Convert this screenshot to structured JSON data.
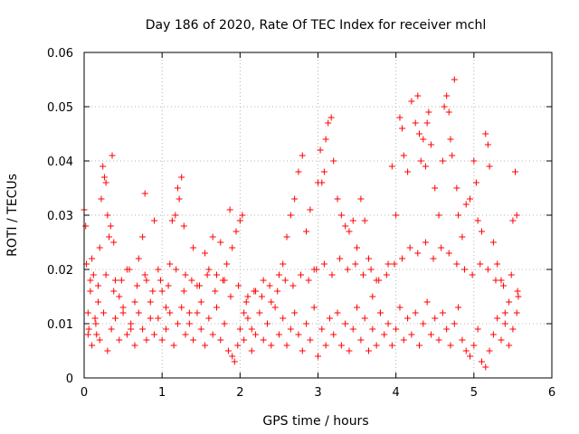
{
  "chart_data": {
    "type": "scatter",
    "title": "Day 186 of 2020, Rate Of TEC Index for receiver mchl",
    "xlabel": "GPS time / hours",
    "ylabel": "ROTI / TECUs",
    "xlim": [
      0,
      6
    ],
    "ylim": [
      0,
      0.06
    ],
    "x_ticks": [
      0,
      1,
      2,
      3,
      4,
      5,
      6
    ],
    "x_tick_labels": [
      "0",
      "1",
      "2",
      "3",
      "4",
      "5",
      "6"
    ],
    "y_ticks": [
      0,
      0.01,
      0.02,
      0.03,
      0.04,
      0.05,
      0.06
    ],
    "y_tick_labels": [
      "0",
      "0.01",
      "0.02",
      "0.03",
      "0.04",
      "0.05",
      "0.06"
    ],
    "grid": true,
    "marker": "+",
    "color": "#ff0000",
    "series": [
      {
        "name": "ROTI",
        "points": [
          [
            0.0,
            0.031
          ],
          [
            0.02,
            0.028
          ],
          [
            0.03,
            0.021
          ],
          [
            0.05,
            0.012
          ],
          [
            0.06,
            0.009
          ],
          [
            0.08,
            0.016
          ],
          [
            0.1,
            0.022
          ],
          [
            0.12,
            0.019
          ],
          [
            0.14,
            0.011
          ],
          [
            0.16,
            0.008
          ],
          [
            0.18,
            0.014
          ],
          [
            0.2,
            0.024
          ],
          [
            0.22,
            0.033
          ],
          [
            0.24,
            0.039
          ],
          [
            0.26,
            0.037
          ],
          [
            0.28,
            0.036
          ],
          [
            0.3,
            0.03
          ],
          [
            0.32,
            0.026
          ],
          [
            0.34,
            0.028
          ],
          [
            0.36,
            0.041
          ],
          [
            0.38,
            0.025
          ],
          [
            0.4,
            0.018
          ],
          [
            0.45,
            0.015
          ],
          [
            0.5,
            0.012
          ],
          [
            0.55,
            0.02
          ],
          [
            0.6,
            0.009
          ],
          [
            0.65,
            0.014
          ],
          [
            0.7,
            0.022
          ],
          [
            0.75,
            0.026
          ],
          [
            0.78,
            0.034
          ],
          [
            0.8,
            0.018
          ],
          [
            0.85,
            0.011
          ],
          [
            0.9,
            0.029
          ],
          [
            0.95,
            0.02
          ],
          [
            1.0,
            0.016
          ],
          [
            1.05,
            0.013
          ],
          [
            1.1,
            0.021
          ],
          [
            1.13,
            0.029
          ],
          [
            1.17,
            0.03
          ],
          [
            1.2,
            0.035
          ],
          [
            1.22,
            0.033
          ],
          [
            1.25,
            0.037
          ],
          [
            1.28,
            0.028
          ],
          [
            1.3,
            0.019
          ],
          [
            1.35,
            0.012
          ],
          [
            1.4,
            0.024
          ],
          [
            1.45,
            0.017
          ],
          [
            1.5,
            0.014
          ],
          [
            1.55,
            0.023
          ],
          [
            1.6,
            0.02
          ],
          [
            1.65,
            0.026
          ],
          [
            1.7,
            0.019
          ],
          [
            1.75,
            0.025
          ],
          [
            1.8,
            0.018
          ],
          [
            1.83,
            0.021
          ],
          [
            1.87,
            0.031
          ],
          [
            1.9,
            0.024
          ],
          [
            1.95,
            0.027
          ],
          [
            2.0,
            0.029
          ],
          [
            2.03,
            0.03
          ],
          [
            2.05,
            0.012
          ],
          [
            2.1,
            0.015
          ],
          [
            2.15,
            0.009
          ],
          [
            2.2,
            0.016
          ],
          [
            2.3,
            0.018
          ],
          [
            2.4,
            0.014
          ],
          [
            2.5,
            0.019
          ],
          [
            2.55,
            0.021
          ],
          [
            2.6,
            0.026
          ],
          [
            2.65,
            0.03
          ],
          [
            2.7,
            0.033
          ],
          [
            2.75,
            0.038
          ],
          [
            2.8,
            0.041
          ],
          [
            2.85,
            0.027
          ],
          [
            2.9,
            0.031
          ],
          [
            2.95,
            0.02
          ],
          [
            3.0,
            0.036
          ],
          [
            3.03,
            0.042
          ],
          [
            3.05,
            0.036
          ],
          [
            3.08,
            0.038
          ],
          [
            3.1,
            0.044
          ],
          [
            3.13,
            0.047
          ],
          [
            3.17,
            0.048
          ],
          [
            3.2,
            0.04
          ],
          [
            3.25,
            0.033
          ],
          [
            3.3,
            0.03
          ],
          [
            3.35,
            0.028
          ],
          [
            3.4,
            0.027
          ],
          [
            3.45,
            0.029
          ],
          [
            3.5,
            0.024
          ],
          [
            3.55,
            0.033
          ],
          [
            3.6,
            0.029
          ],
          [
            3.65,
            0.022
          ],
          [
            3.7,
            0.015
          ],
          [
            3.75,
            0.018
          ],
          [
            3.8,
            0.012
          ],
          [
            3.9,
            0.021
          ],
          [
            3.95,
            0.039
          ],
          [
            4.0,
            0.03
          ],
          [
            4.05,
            0.048
          ],
          [
            4.08,
            0.046
          ],
          [
            4.1,
            0.041
          ],
          [
            4.15,
            0.038
          ],
          [
            4.2,
            0.051
          ],
          [
            4.25,
            0.047
          ],
          [
            4.28,
            0.052
          ],
          [
            4.3,
            0.045
          ],
          [
            4.32,
            0.04
          ],
          [
            4.35,
            0.044
          ],
          [
            4.38,
            0.039
          ],
          [
            4.4,
            0.047
          ],
          [
            4.42,
            0.049
          ],
          [
            4.45,
            0.043
          ],
          [
            4.5,
            0.035
          ],
          [
            4.55,
            0.03
          ],
          [
            4.6,
            0.04
          ],
          [
            4.62,
            0.05
          ],
          [
            4.65,
            0.052
          ],
          [
            4.68,
            0.049
          ],
          [
            4.7,
            0.044
          ],
          [
            4.72,
            0.041
          ],
          [
            4.75,
            0.055
          ],
          [
            4.78,
            0.035
          ],
          [
            4.8,
            0.03
          ],
          [
            4.85,
            0.026
          ],
          [
            4.9,
            0.032
          ],
          [
            4.95,
            0.033
          ],
          [
            5.0,
            0.04
          ],
          [
            5.03,
            0.036
          ],
          [
            5.05,
            0.029
          ],
          [
            5.1,
            0.027
          ],
          [
            5.15,
            0.045
          ],
          [
            5.18,
            0.043
          ],
          [
            5.2,
            0.039
          ],
          [
            5.25,
            0.025
          ],
          [
            5.3,
            0.021
          ],
          [
            5.35,
            0.018
          ],
          [
            5.4,
            0.012
          ],
          [
            5.45,
            0.014
          ],
          [
            5.5,
            0.029
          ],
          [
            5.53,
            0.038
          ],
          [
            5.55,
            0.03
          ],
          [
            5.57,
            0.015
          ],
          [
            0.05,
            0.008
          ],
          [
            0.1,
            0.006
          ],
          [
            0.15,
            0.01
          ],
          [
            0.2,
            0.007
          ],
          [
            0.25,
            0.012
          ],
          [
            0.3,
            0.005
          ],
          [
            0.35,
            0.009
          ],
          [
            0.4,
            0.011
          ],
          [
            0.45,
            0.007
          ],
          [
            0.5,
            0.013
          ],
          [
            0.55,
            0.008
          ],
          [
            0.6,
            0.01
          ],
          [
            0.65,
            0.006
          ],
          [
            0.7,
            0.012
          ],
          [
            0.75,
            0.009
          ],
          [
            0.8,
            0.007
          ],
          [
            0.85,
            0.014
          ],
          [
            0.9,
            0.008
          ],
          [
            0.95,
            0.011
          ],
          [
            1.0,
            0.007
          ],
          [
            1.05,
            0.009
          ],
          [
            1.1,
            0.012
          ],
          [
            1.15,
            0.006
          ],
          [
            1.2,
            0.01
          ],
          [
            1.25,
            0.013
          ],
          [
            1.3,
            0.008
          ],
          [
            1.35,
            0.01
          ],
          [
            1.4,
            0.007
          ],
          [
            1.45,
            0.012
          ],
          [
            1.5,
            0.009
          ],
          [
            1.55,
            0.006
          ],
          [
            1.6,
            0.011
          ],
          [
            1.65,
            0.008
          ],
          [
            1.7,
            0.013
          ],
          [
            1.75,
            0.007
          ],
          [
            1.8,
            0.01
          ],
          [
            1.85,
            0.005
          ],
          [
            1.9,
            0.004
          ],
          [
            1.93,
            0.003
          ],
          [
            1.97,
            0.006
          ],
          [
            2.0,
            0.009
          ],
          [
            2.05,
            0.007
          ],
          [
            2.1,
            0.011
          ],
          [
            2.15,
            0.005
          ],
          [
            2.2,
            0.008
          ],
          [
            2.25,
            0.012
          ],
          [
            2.3,
            0.007
          ],
          [
            2.35,
            0.01
          ],
          [
            2.4,
            0.006
          ],
          [
            2.45,
            0.013
          ],
          [
            2.5,
            0.008
          ],
          [
            2.55,
            0.011
          ],
          [
            2.6,
            0.006
          ],
          [
            2.65,
            0.009
          ],
          [
            2.7,
            0.012
          ],
          [
            2.75,
            0.008
          ],
          [
            2.8,
            0.005
          ],
          [
            2.85,
            0.01
          ],
          [
            2.9,
            0.007
          ],
          [
            2.95,
            0.013
          ],
          [
            3.0,
            0.004
          ],
          [
            3.05,
            0.009
          ],
          [
            3.1,
            0.006
          ],
          [
            3.15,
            0.011
          ],
          [
            3.2,
            0.008
          ],
          [
            3.25,
            0.012
          ],
          [
            3.3,
            0.006
          ],
          [
            3.35,
            0.01
          ],
          [
            3.4,
            0.005
          ],
          [
            3.45,
            0.009
          ],
          [
            3.5,
            0.013
          ],
          [
            3.55,
            0.007
          ],
          [
            3.6,
            0.011
          ],
          [
            3.65,
            0.005
          ],
          [
            3.7,
            0.009
          ],
          [
            3.75,
            0.006
          ],
          [
            3.8,
            0.012
          ],
          [
            3.85,
            0.008
          ],
          [
            3.9,
            0.01
          ],
          [
            3.95,
            0.006
          ],
          [
            4.0,
            0.009
          ],
          [
            4.05,
            0.013
          ],
          [
            4.1,
            0.007
          ],
          [
            4.15,
            0.011
          ],
          [
            4.2,
            0.008
          ],
          [
            4.25,
            0.012
          ],
          [
            4.3,
            0.006
          ],
          [
            4.35,
            0.01
          ],
          [
            4.4,
            0.014
          ],
          [
            4.45,
            0.008
          ],
          [
            4.5,
            0.011
          ],
          [
            4.55,
            0.007
          ],
          [
            4.6,
            0.012
          ],
          [
            4.65,
            0.009
          ],
          [
            4.7,
            0.006
          ],
          [
            4.75,
            0.01
          ],
          [
            4.8,
            0.013
          ],
          [
            4.85,
            0.007
          ],
          [
            4.9,
            0.005
          ],
          [
            4.95,
            0.004
          ],
          [
            5.0,
            0.006
          ],
          [
            5.05,
            0.009
          ],
          [
            5.1,
            0.003
          ],
          [
            5.15,
            0.002
          ],
          [
            5.2,
            0.005
          ],
          [
            5.25,
            0.008
          ],
          [
            5.3,
            0.011
          ],
          [
            5.35,
            0.007
          ],
          [
            5.4,
            0.01
          ],
          [
            5.45,
            0.006
          ],
          [
            5.5,
            0.009
          ],
          [
            5.55,
            0.012
          ],
          [
            0.08,
            0.018
          ],
          [
            0.18,
            0.017
          ],
          [
            0.28,
            0.019
          ],
          [
            0.38,
            0.016
          ],
          [
            0.48,
            0.018
          ],
          [
            0.58,
            0.02
          ],
          [
            0.68,
            0.017
          ],
          [
            0.78,
            0.019
          ],
          [
            0.88,
            0.016
          ],
          [
            0.98,
            0.018
          ],
          [
            1.08,
            0.017
          ],
          [
            1.18,
            0.02
          ],
          [
            1.28,
            0.016
          ],
          [
            1.38,
            0.018
          ],
          [
            1.48,
            0.017
          ],
          [
            1.58,
            0.019
          ],
          [
            1.68,
            0.016
          ],
          [
            1.78,
            0.018
          ],
          [
            1.88,
            0.015
          ],
          [
            1.98,
            0.017
          ],
          [
            2.08,
            0.014
          ],
          [
            2.18,
            0.016
          ],
          [
            2.28,
            0.015
          ],
          [
            2.38,
            0.017
          ],
          [
            2.48,
            0.016
          ],
          [
            2.58,
            0.018
          ],
          [
            2.68,
            0.017
          ],
          [
            2.78,
            0.019
          ],
          [
            2.88,
            0.018
          ],
          [
            2.98,
            0.02
          ],
          [
            3.08,
            0.021
          ],
          [
            3.18,
            0.019
          ],
          [
            3.28,
            0.022
          ],
          [
            3.38,
            0.02
          ],
          [
            3.48,
            0.021
          ],
          [
            3.58,
            0.019
          ],
          [
            3.68,
            0.02
          ],
          [
            3.78,
            0.018
          ],
          [
            3.88,
            0.019
          ],
          [
            3.98,
            0.021
          ],
          [
            4.08,
            0.022
          ],
          [
            4.18,
            0.024
          ],
          [
            4.28,
            0.023
          ],
          [
            4.38,
            0.025
          ],
          [
            4.48,
            0.022
          ],
          [
            4.58,
            0.024
          ],
          [
            4.68,
            0.023
          ],
          [
            4.78,
            0.021
          ],
          [
            4.88,
            0.02
          ],
          [
            4.98,
            0.019
          ],
          [
            5.08,
            0.021
          ],
          [
            5.18,
            0.02
          ],
          [
            5.28,
            0.018
          ],
          [
            5.38,
            0.017
          ],
          [
            5.48,
            0.019
          ],
          [
            5.56,
            0.016
          ]
        ]
      }
    ]
  }
}
